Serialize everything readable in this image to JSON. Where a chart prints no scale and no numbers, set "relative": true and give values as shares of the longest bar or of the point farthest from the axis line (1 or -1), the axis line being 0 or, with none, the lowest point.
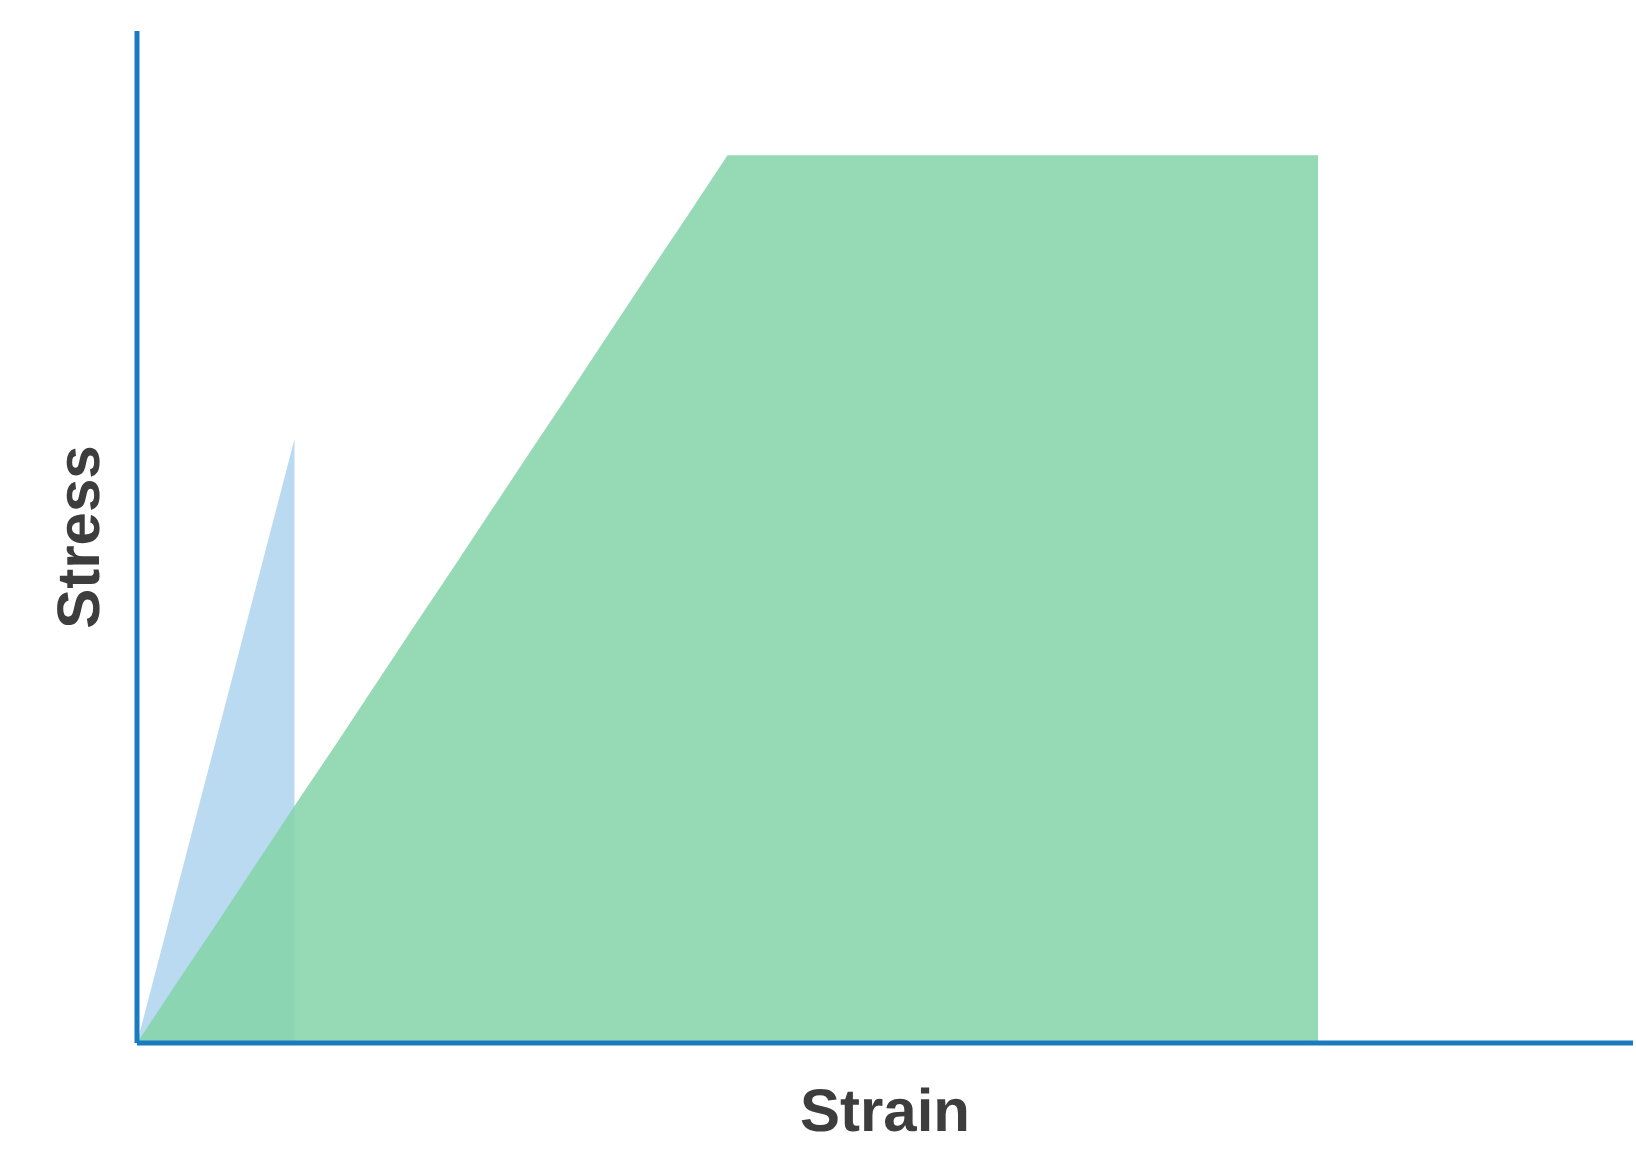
{
  "chart_data": {
    "type": "area",
    "relative": true,
    "xlabel": "Strain",
    "ylabel": "Stress",
    "categories": [
      null,
      null,
      null,
      null,
      null,
      null,
      null,
      null,
      null,
      null,
      null,
      null,
      null,
      null,
      null,
      null,
      null,
      null,
      null,
      null,
      null,
      null,
      null,
      null,
      null,
      null,
      null,
      null,
      null,
      null,
      null,
      null,
      null,
      null,
      null,
      null,
      null,
      null,
      null
    ],
    "series": [
      {
        "color": "#b5d8ef",
        "values": [
          0,
          0.17,
          0.34,
          0.51,
          0.68,
          null,
          null,
          null,
          null,
          null,
          null,
          null,
          null,
          null,
          null,
          null,
          null,
          null,
          null,
          null,
          null,
          null,
          null,
          null,
          null,
          null,
          null,
          null,
          null,
          null,
          null,
          null,
          null,
          null,
          null,
          null,
          null,
          null,
          null
        ]
      },
      {
        "color": "#82d3a8",
        "values": [
          0,
          0.067,
          0.133,
          0.2,
          0.267,
          0.333,
          0.4,
          0.467,
          0.533,
          0.6,
          0.667,
          0.733,
          0.8,
          0.867,
          0.933,
          1,
          1,
          1,
          1,
          1,
          1,
          1,
          1,
          1,
          1,
          1,
          1,
          1,
          1,
          1,
          1,
          null,
          null,
          null,
          null,
          null,
          null,
          null,
          null
        ]
      }
    ]
  }
}
